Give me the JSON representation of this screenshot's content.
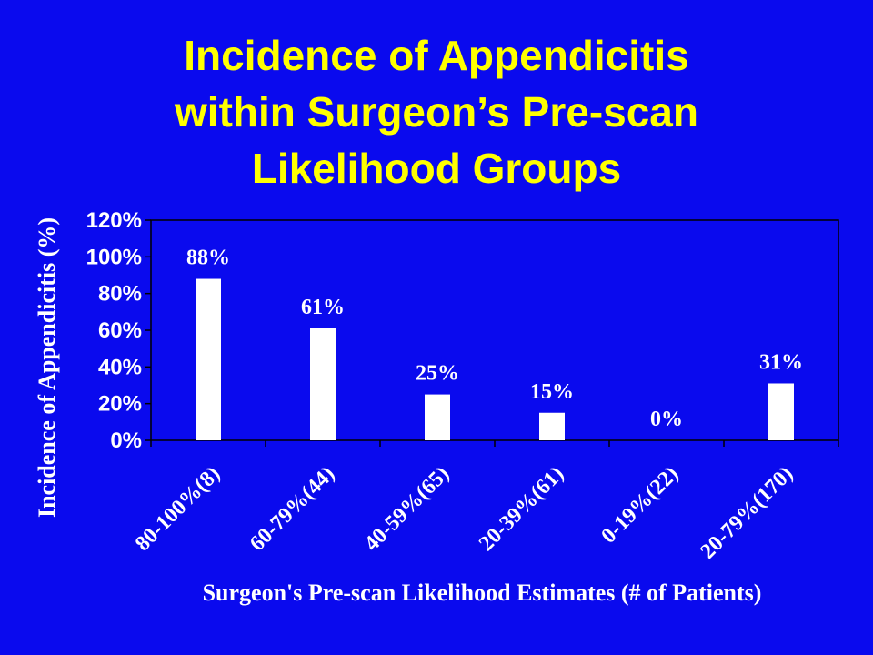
{
  "slide": {
    "title_lines": [
      "Incidence of Appendicitis",
      "within Surgeon’s Pre-scan",
      "Likelihood Groups"
    ]
  },
  "colors": {
    "background": "#0a0aee",
    "title": "#ffff00",
    "bars": "#ffffff",
    "text": "#ffffff",
    "axis": "#000000"
  },
  "chart_data": {
    "type": "bar",
    "title": "",
    "xlabel": "Surgeon's Pre-scan Likelihood Estimates (# of Patients)",
    "ylabel": "Incidence of Appendicitis (%)",
    "categories": [
      "80-100%(8)",
      "60-79%(44)",
      "40-59%(65)",
      "20-39%(61)",
      "0-19%(22)",
      "20-79%(170)"
    ],
    "values": [
      88,
      61,
      25,
      15,
      0,
      31
    ],
    "data_labels": [
      "88%",
      "61%",
      "25%",
      "15%",
      "0%",
      "31%"
    ],
    "ylim": [
      0,
      120
    ],
    "yticks": [
      0,
      20,
      40,
      60,
      80,
      100,
      120
    ],
    "ytick_labels": [
      "0%",
      "20%",
      "40%",
      "60%",
      "80%",
      "100%",
      "120%"
    ],
    "grid": false,
    "legend": "none"
  }
}
